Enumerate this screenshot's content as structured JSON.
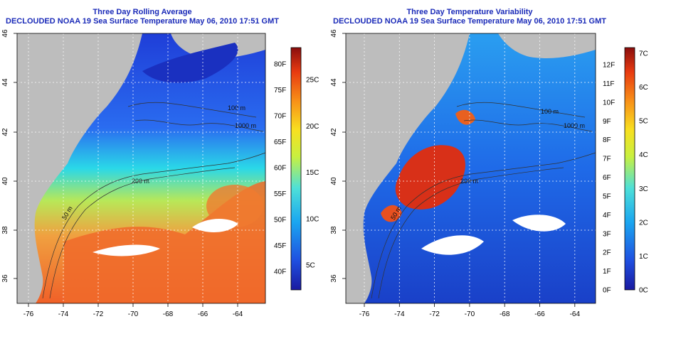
{
  "left_panel": {
    "title": "Three Day Rolling Average",
    "subtitle": "DECLOUDED NOAA 19 Sea Surface Temperature May 06, 2010 17:51 GMT",
    "colorbar_f": [
      "40F",
      "45F",
      "50F",
      "55F",
      "60F",
      "65F",
      "70F",
      "75F",
      "80F"
    ],
    "colorbar_c": [
      "5C",
      "10C",
      "15C",
      "20C",
      "25C"
    ]
  },
  "right_panel": {
    "title": "Three Day Temperature Variability",
    "subtitle": "DECLOUDED NOAA 19 Sea Surface Temperature May 06, 2010 17:51 GMT",
    "colorbar_f": [
      "0F",
      "1F",
      "2F",
      "3F",
      "4F",
      "5F",
      "6F",
      "7F",
      "8F",
      "9F",
      "10F",
      "11F",
      "12F"
    ],
    "colorbar_c": [
      "0C",
      "1C",
      "2C",
      "3C",
      "4C",
      "5C",
      "6C",
      "7C"
    ]
  },
  "axes": {
    "x_ticks": [
      "-76",
      "-74",
      "-72",
      "-70",
      "-68",
      "-66",
      "-64"
    ],
    "y_ticks": [
      "36",
      "38",
      "40",
      "42",
      "44",
      "46"
    ]
  },
  "depth_labels": [
    "50 m",
    "200 m",
    "1000 m",
    "100 m"
  ],
  "colors": {
    "land": "#bdbdbd",
    "title": "#1a2ab8",
    "cloud_mask": "#ffffff"
  }
}
